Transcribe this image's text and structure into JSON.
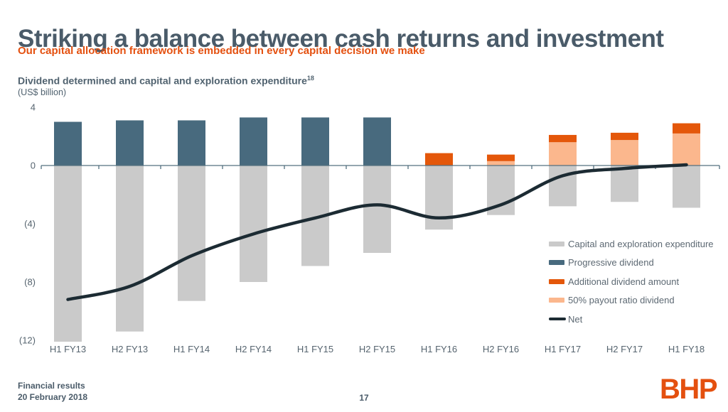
{
  "slide": {
    "title": "Striking a balance between cash returns and investment",
    "subtitle": "Our capital allocation framework is embedded in every capital decision we make",
    "footer": {
      "line1": "Financial results",
      "line2": "20 February 2018",
      "page_number": "17",
      "logo_text": "BHP"
    }
  },
  "colors": {
    "accent_orange": "#e4500f",
    "slate_text": "#4a5b69",
    "axis": "#53707f"
  },
  "chart_data": {
    "type": "bar",
    "subtype": "stacked-bar-with-line",
    "title": "Dividend determined and capital and exploration expenditure",
    "title_footnote_ref": "18",
    "unit_label": "(US$ billion)",
    "xlabel": "",
    "ylabel": "US$ billion",
    "ylim": [
      -12.6,
      4
    ],
    "grid": false,
    "categories": [
      "H1 FY13",
      "H2 FY13",
      "H1 FY14",
      "H2 FY14",
      "H1 FY15",
      "H2 FY15",
      "H1 FY16",
      "H2 FY16",
      "H1 FY17",
      "H2 FY17",
      "H1 FY18"
    ],
    "y_ticks": [
      {
        "label": "4",
        "value": 4
      },
      {
        "label": "0",
        "value": 0
      },
      {
        "label": "(4)",
        "value": -4
      },
      {
        "label": "(8)",
        "value": -8
      },
      {
        "label": "(12)",
        "value": -12
      }
    ],
    "series": [
      {
        "name": "Capital and exploration expenditure",
        "type": "bar",
        "color": "#cacaca",
        "values": [
          -12.1,
          -11.4,
          -9.3,
          -8.0,
          -6.9,
          -6.0,
          -4.4,
          -3.4,
          -2.8,
          -2.5,
          -2.9
        ]
      },
      {
        "name": "Progressive dividend",
        "type": "bar",
        "color": "#486a7e",
        "values": [
          3.0,
          3.1,
          3.1,
          3.3,
          3.3,
          3.3,
          0,
          0,
          0,
          0,
          0
        ]
      },
      {
        "name": "50% payout ratio dividend",
        "type": "bar",
        "color": "#fbb78d",
        "values": [
          0,
          0,
          0,
          0,
          0,
          0,
          0,
          0.3,
          1.6,
          1.75,
          2.2
        ]
      },
      {
        "name": "Additional dividend amount",
        "type": "bar",
        "color": "#e4570a",
        "values": [
          0,
          0,
          0,
          0,
          0,
          0,
          0.85,
          0.45,
          0.5,
          0.5,
          0.7
        ]
      },
      {
        "name": "Net",
        "type": "line",
        "color": "#1c2b33",
        "values": [
          -9.2,
          -8.3,
          -6.2,
          -4.7,
          -3.6,
          -2.7,
          -3.6,
          -2.7,
          -0.7,
          -0.2,
          0.05
        ]
      }
    ],
    "legend": {
      "position": "inside-right",
      "items": [
        {
          "label": "Capital and exploration expenditure",
          "color": "#cacaca",
          "shape": "bar"
        },
        {
          "label": "Progressive dividend",
          "color": "#486a7e",
          "shape": "bar"
        },
        {
          "label": "Additional dividend amount",
          "color": "#e4570a",
          "shape": "bar"
        },
        {
          "label": "50% payout ratio dividend",
          "color": "#fbb78d",
          "shape": "bar"
        },
        {
          "label": "Net",
          "color": "#1c2b33",
          "shape": "line"
        }
      ]
    }
  }
}
